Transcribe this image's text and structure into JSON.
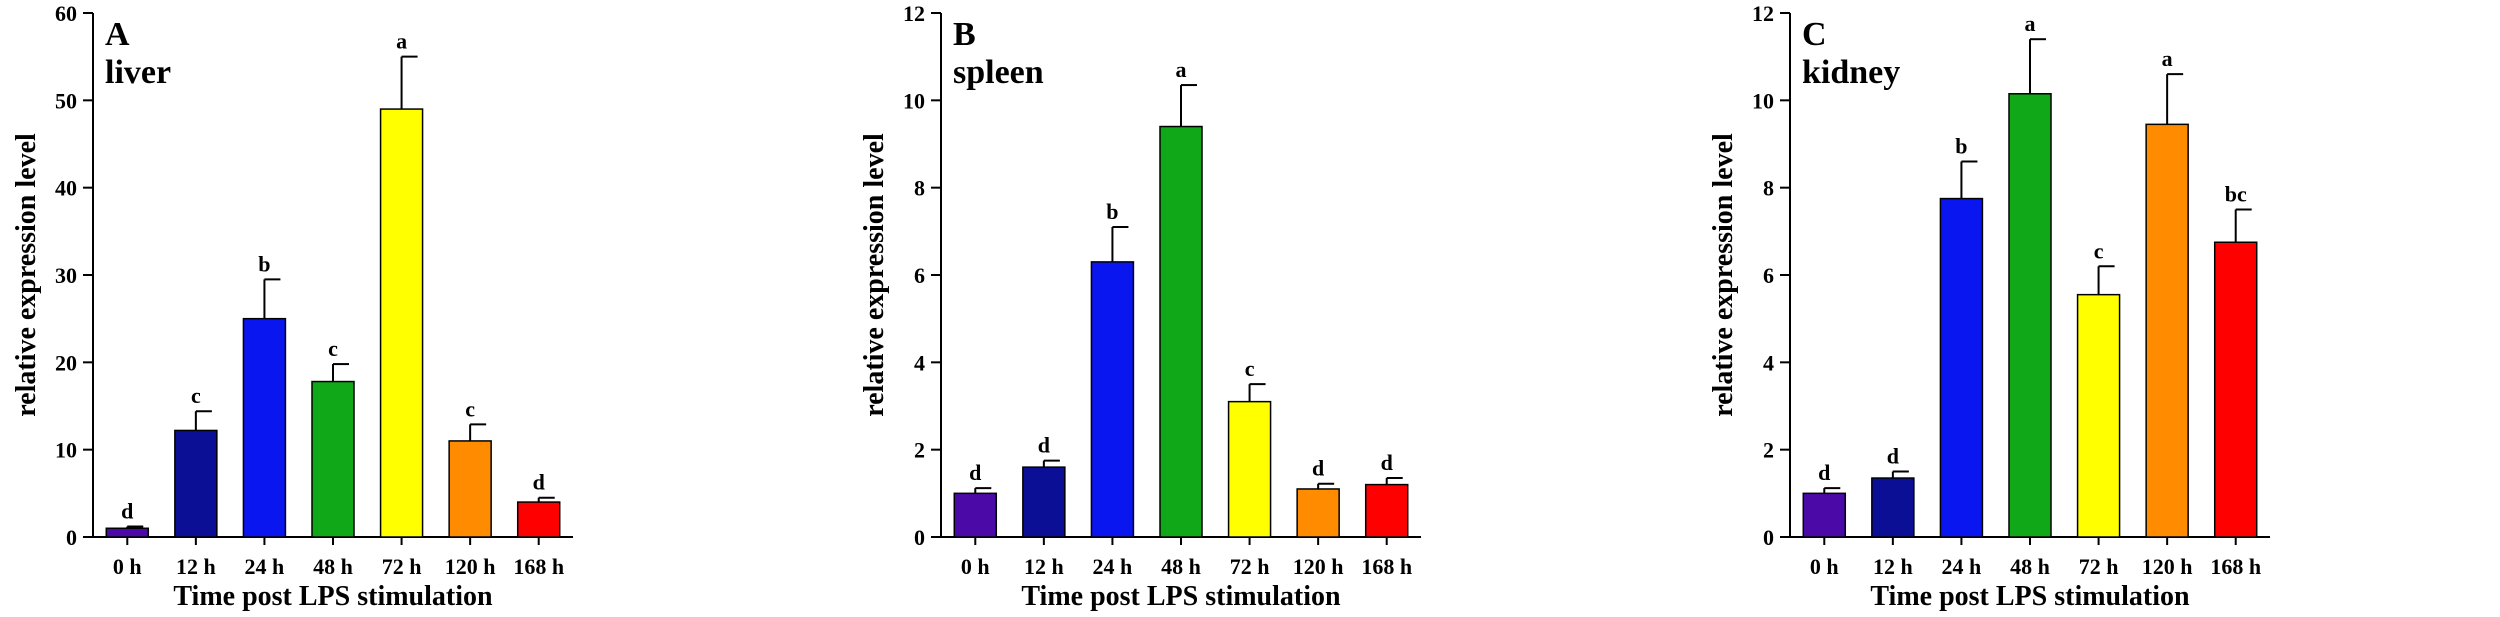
{
  "chart_data": [
    {
      "type": "bar",
      "panel_label": "A",
      "title": "liver",
      "xlabel": "Time post LPS stimulation",
      "ylabel": "relative  expression level",
      "categories": [
        "0 h",
        "12 h",
        "24 h",
        "48 h",
        "72 h",
        "120 h",
        "168 h"
      ],
      "values": [
        1.0,
        12.2,
        25.0,
        17.8,
        49.0,
        11.0,
        4.0
      ],
      "errors": [
        0.2,
        2.2,
        4.5,
        2.0,
        6.0,
        1.9,
        0.5
      ],
      "significance": [
        "d",
        "c",
        "b",
        "c",
        "a",
        "c",
        "d"
      ],
      "ylim": [
        0,
        60
      ],
      "yticks": [
        0,
        10,
        20,
        30,
        40,
        50,
        60
      ],
      "colors": [
        "#4B0AA8",
        "#0A0F96",
        "#0A16F0",
        "#10A818",
        "#FFFF00",
        "#FF8C00",
        "#FF0000"
      ],
      "grid": false
    },
    {
      "type": "bar",
      "panel_label": "B",
      "title": "spleen",
      "xlabel": "Time post LPS stimulation",
      "ylabel": "relative expression level",
      "categories": [
        "0 h",
        "12 h",
        "24 h",
        "48 h",
        "72 h",
        "120 h",
        "168 h"
      ],
      "values": [
        1.0,
        1.6,
        6.3,
        9.4,
        3.1,
        1.1,
        1.2
      ],
      "errors": [
        0.12,
        0.15,
        0.8,
        0.95,
        0.4,
        0.12,
        0.15
      ],
      "significance": [
        "d",
        "d",
        "b",
        "a",
        "c",
        "d",
        "d"
      ],
      "ylim": [
        0,
        12
      ],
      "yticks": [
        0,
        2,
        4,
        6,
        8,
        10,
        12
      ],
      "colors": [
        "#4B0AA8",
        "#0A0F96",
        "#0A16F0",
        "#10A818",
        "#FFFF00",
        "#FF8C00",
        "#FF0000"
      ],
      "grid": false
    },
    {
      "type": "bar",
      "panel_label": "C",
      "title": "kidney",
      "xlabel": "Time post LPS stimulation",
      "ylabel": "relative expression level",
      "categories": [
        "0 h",
        "12 h",
        "24 h",
        "48 h",
        "72 h",
        "120 h",
        "168 h"
      ],
      "values": [
        1.0,
        1.35,
        7.75,
        10.15,
        5.55,
        9.45,
        6.75
      ],
      "errors": [
        0.12,
        0.15,
        0.85,
        1.25,
        0.65,
        1.15,
        0.75
      ],
      "significance": [
        "d",
        "d",
        "b",
        "a",
        "c",
        "a",
        "bc"
      ],
      "ylim": [
        0,
        12
      ],
      "yticks": [
        0,
        2,
        4,
        6,
        8,
        10,
        12
      ],
      "colors": [
        "#4B0AA8",
        "#0A0F96",
        "#0A16F0",
        "#10A818",
        "#FFFF00",
        "#FF8C00",
        "#FF0000"
      ],
      "grid": false
    }
  ]
}
